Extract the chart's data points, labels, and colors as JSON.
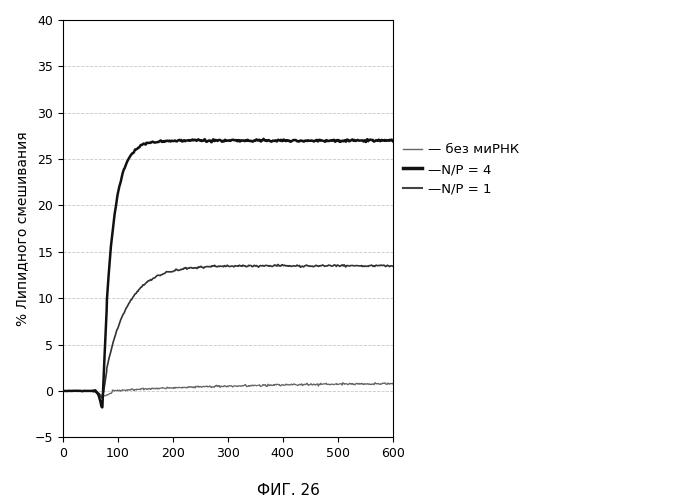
{
  "title": "ФИГ. 26",
  "ylabel": "% Липидного смешивания",
  "xlabel": "",
  "xlim": [
    0,
    600
  ],
  "ylim": [
    -5,
    40
  ],
  "yticks": [
    -5,
    0,
    5,
    10,
    15,
    20,
    25,
    30,
    35,
    40
  ],
  "xticks": [
    0,
    100,
    200,
    300,
    400,
    500,
    600
  ],
  "curve_np4_plateau": 27.0,
  "curve_np4_rise_start": 72,
  "curve_np4_rise_speed": 0.055,
  "curve_np4_noise": 0.18,
  "curve_np1_plateau": 13.5,
  "curve_np1_rise_start": 72,
  "curve_np1_rise_speed": 0.025,
  "curve_np1_noise": 0.15,
  "curve_none_plateau": 0.9,
  "curve_none_noise": 0.12,
  "background_color": "#ffffff",
  "grid_color": "#bbbbbb",
  "font_color": "#000000",
  "legend_bez": "— без миРНК",
  "legend_np4": "—N/P = 4",
  "legend_np1": "—N/P = 1"
}
